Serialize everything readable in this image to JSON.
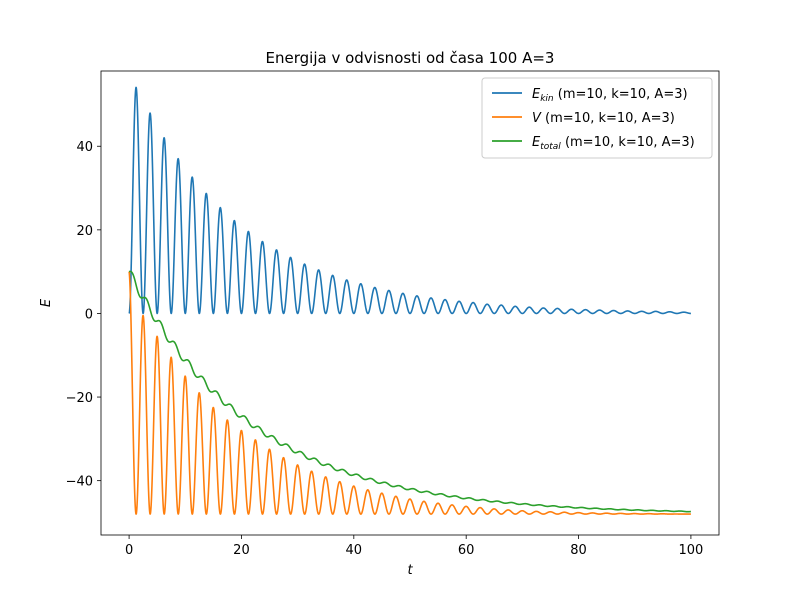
{
  "chart_data": {
    "type": "line",
    "title": "Energija v odvisnosti od časa 100 A=3",
    "xlabel": "t",
    "ylabel": "E",
    "xlim": [
      -5,
      105
    ],
    "ylim": [
      -53,
      58
    ],
    "xticks": [
      0,
      20,
      40,
      60,
      80,
      100
    ],
    "yticks": [
      -40,
      -20,
      0,
      20,
      40
    ],
    "xtick_labels": [
      "0",
      "20",
      "40",
      "60",
      "80",
      "100"
    ],
    "ytick_labels": [
      "−40",
      "−20",
      "0",
      "20",
      "40"
    ],
    "grid": false,
    "legend_placement": "top-right",
    "series": [
      {
        "name": "E_kin (m=10, k=10, A=3)",
        "label_main": "E",
        "label_sub": "kin",
        "label_rest": " (m=10, k=10, A=3)",
        "color": "#1f77b4",
        "sampled": true,
        "t_range": [
          0,
          100
        ],
        "peak_values": [
          54.1,
          47.9,
          42.0,
          37.0,
          32.6,
          28.7,
          25.3,
          22.2,
          19.6,
          17.2,
          15.2,
          13.4,
          11.8,
          10.4,
          9.1,
          8.0,
          7.1,
          6.2,
          5.5,
          4.8,
          4.2,
          3.7,
          3.3,
          2.9,
          2.6,
          2.2,
          2.0,
          1.7,
          1.5,
          1.3,
          1.2,
          1.0,
          0.9,
          0.8,
          0.7,
          0.6,
          0.5,
          0.5,
          0.4,
          0.3
        ],
        "min_value": 0
      },
      {
        "name": "V (m=10, k=10, A=3)",
        "label_main": "V",
        "label_sub": "",
        "label_rest": " (m=10, k=10, A=3)",
        "color": "#ff7f0e",
        "sampled": true,
        "t_range": [
          0,
          100
        ],
        "start_value": 10,
        "min_value": -48,
        "peak_values": [
          2.0,
          -3.0,
          -8.0,
          -13.0,
          -17.0,
          -21.0,
          -24.0,
          -27.0,
          -29.0,
          -31.5,
          -33.5,
          -35.5,
          -37.0,
          -38.5,
          -39.7,
          -40.8,
          -41.8,
          -42.6,
          -43.4,
          -44.1,
          -44.7,
          -45.2,
          -45.6,
          -46.0,
          -46.3,
          -46.6,
          -46.9,
          -47.1,
          -47.3,
          -47.4,
          -47.5,
          -47.6,
          -47.7,
          -47.75,
          -47.8,
          -47.85,
          -47.9,
          -47.9,
          -47.95,
          -48.0
        ]
      },
      {
        "name": "E_total (m=10, k=10, A=3)",
        "label_main": "E",
        "label_sub": "total",
        "label_rest": " (m=10, k=10, A=3)",
        "color": "#2ca02c",
        "sampled": true,
        "t_range": [
          0,
          100
        ],
        "start_value": 10,
        "end_value": -48,
        "decay_time": 22,
        "step_amplitude": 1.2
      }
    ]
  }
}
